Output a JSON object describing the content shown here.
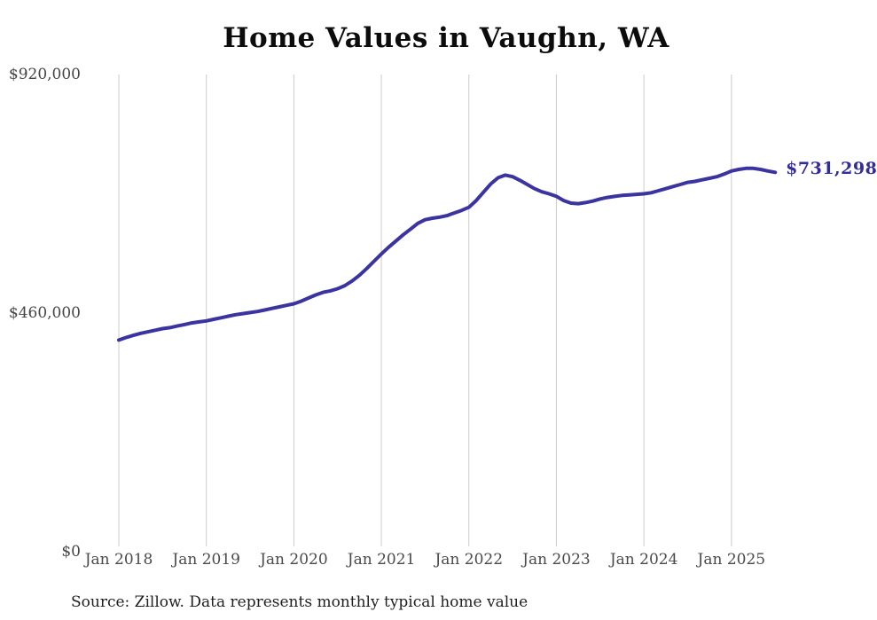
{
  "page": {
    "background_color": "#ffffff"
  },
  "chart_data": {
    "type": "line",
    "title": "Home Values in Vaughn, WA",
    "source_note": "Source: Zillow. Data represents monthly typical home value",
    "series": [
      {
        "name": "Typical home value (monthly)",
        "start_month": "2018-01",
        "end_month": "2025-07",
        "values": [
          408000,
          413000,
          417000,
          421000,
          424000,
          427000,
          430000,
          432000,
          435000,
          438000,
          441000,
          443000,
          445000,
          448000,
          451000,
          454000,
          457000,
          459000,
          461000,
          463000,
          466000,
          469000,
          472000,
          475000,
          478000,
          483000,
          489000,
          495000,
          500000,
          503000,
          507000,
          513000,
          522000,
          533000,
          546000,
          560000,
          574000,
          587000,
          599000,
          611000,
          622000,
          633000,
          640000,
          643000,
          645000,
          648000,
          653000,
          658000,
          664000,
          677000,
          693000,
          709000,
          721000,
          726000,
          723000,
          716000,
          708000,
          700000,
          694000,
          690000,
          685000,
          677000,
          672000,
          671000,
          673000,
          676000,
          680000,
          683000,
          685000,
          687000,
          688000,
          689000,
          690000,
          692000,
          696000,
          700000,
          704000,
          708000,
          712000,
          714000,
          717000,
          720000,
          723000,
          728000,
          734000,
          737000,
          739000,
          739000,
          737000,
          734000,
          731298
        ]
      }
    ],
    "end_label": "$731,298",
    "x_ticks": [
      "Jan 2018",
      "Jan 2019",
      "Jan 2020",
      "Jan 2021",
      "Jan 2022",
      "Jan 2023",
      "Jan 2024",
      "Jan 2025"
    ],
    "y_ticks": [
      {
        "label": "$920,000",
        "value": 920000
      },
      {
        "label": "$460,000",
        "value": 460000
      },
      {
        "label": "$0",
        "value": 0
      }
    ],
    "ylim": [
      0,
      920000
    ],
    "grid": "vertical-only",
    "legend": "none",
    "line_color": "#3a33a0",
    "end_label_color": "#332d99",
    "grid_color": "#cbcbcb",
    "title_color": "#0c0c0c",
    "tick_label_color": "#4a4a4a"
  }
}
